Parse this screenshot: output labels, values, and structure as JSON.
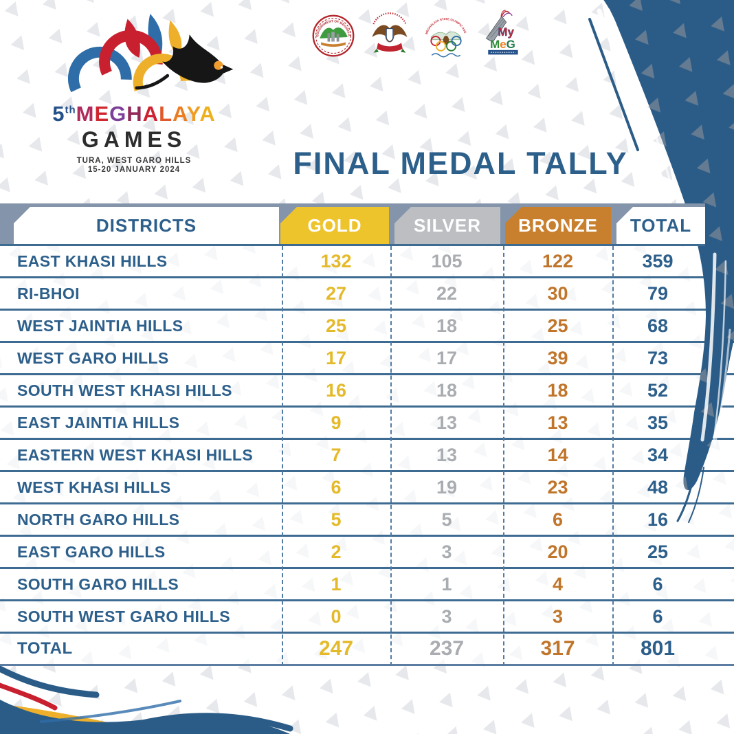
{
  "title": "FINAL MEDAL TALLY",
  "branding": {
    "edition_number": "5",
    "edition_suffix": "th",
    "event_name_letters": [
      {
        "char": "M",
        "color": "#b02a5b"
      },
      {
        "char": "E",
        "color": "#d02630"
      },
      {
        "char": "G",
        "color": "#7d3f98"
      },
      {
        "char": "H",
        "color": "#93295a"
      },
      {
        "char": "A",
        "color": "#cf2030"
      },
      {
        "char": "L",
        "color": "#e1592a"
      },
      {
        "char": "A",
        "color": "#ea7c22"
      },
      {
        "char": "Y",
        "color": "#f09c23"
      },
      {
        "char": "A",
        "color": "#edb01f"
      }
    ],
    "event_subtitle": "GAMES",
    "venue_line": "TURA, WEST GARO HILLS",
    "date_line": "15-20 JANUARY 2024"
  },
  "partner_logos": [
    {
      "name": "government-of-meghalaya-seal",
      "arc_text": "GOVERNMENT OF MEGHALAYA"
    },
    {
      "name": "directorate-of-sports-crest",
      "arc_text": ""
    },
    {
      "name": "meghalaya-state-olympic-association",
      "arc_text": "MEGHALAYA STATE OLYMPIC ASSOCIATION"
    },
    {
      "name": "mymeg-logo",
      "word_top": "My",
      "letters": [
        {
          "char": "M",
          "color": "#2e8b3a"
        },
        {
          "char": "e",
          "color": "#ef7f1a"
        },
        {
          "char": "G",
          "color": "#1f7a4d"
        }
      ]
    }
  ],
  "chart_data": {
    "type": "table",
    "title": "FINAL MEDAL TALLY",
    "columns": [
      "DISTRICTS",
      "GOLD",
      "SILVER",
      "BRONZE",
      "TOTAL"
    ],
    "rows": [
      [
        "EAST KHASI HILLS",
        132,
        105,
        122,
        359
      ],
      [
        "RI-BHOI",
        27,
        22,
        30,
        79
      ],
      [
        "WEST JAINTIA HILLS",
        25,
        18,
        25,
        68
      ],
      [
        "WEST GARO HILLS",
        17,
        17,
        39,
        73
      ],
      [
        "SOUTH WEST KHASI HILLS",
        16,
        18,
        18,
        52
      ],
      [
        "EAST JAINTIA HILLS",
        9,
        13,
        13,
        35
      ],
      [
        "EASTERN WEST KHASI HILLS",
        7,
        13,
        14,
        34
      ],
      [
        "WEST KHASI HILLS",
        6,
        19,
        23,
        48
      ],
      [
        "NORTH GARO HILLS",
        5,
        5,
        6,
        16
      ],
      [
        "EAST GARO HILLS",
        2,
        3,
        20,
        25
      ],
      [
        "SOUTH GARO HILLS",
        1,
        1,
        4,
        6
      ],
      [
        "SOUTH WEST GARO HILLS",
        0,
        3,
        3,
        6
      ]
    ],
    "totals": [
      "TOTAL",
      247,
      237,
      317,
      801
    ]
  },
  "colors": {
    "accent_blue": "#2d5f8b",
    "gold": "#eec42d",
    "gold_text": "#e4ba2a",
    "silver": "#bcbec2",
    "silver_text": "#a9acb0",
    "bronze": "#c8802f",
    "bronze_text": "#c0752a",
    "header_bar": "#8494aa",
    "row_line": "#3e6b92",
    "brush": "#2b5c87"
  }
}
